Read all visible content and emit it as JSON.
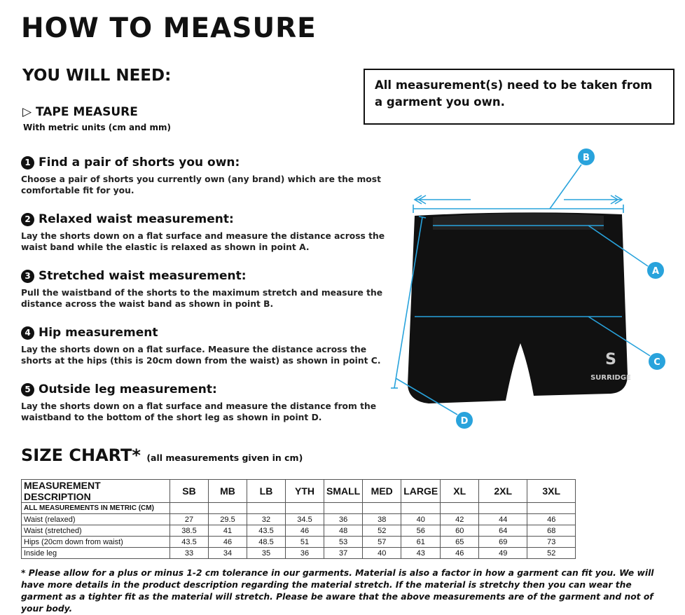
{
  "title": "HOW TO MEASURE",
  "you_will_need": "YOU WILL NEED:",
  "note": "All measurement(s) need to be taken from a garment you own.",
  "tape": {
    "icon": "play-triangle-icon",
    "label": "TAPE MEASURE",
    "sub": "With metric units (cm and mm)"
  },
  "steps": [
    {
      "num": "1",
      "title": "Find a pair of shorts you own:",
      "desc": "Choose a pair of shorts you currently own (any brand) which are the most comfortable fit for you."
    },
    {
      "num": "2",
      "title": "Relaxed waist measurement:",
      "desc": "Lay the shorts down on a flat surface and measure the distance across the waist band while the elastic is relaxed as shown in point A."
    },
    {
      "num": "3",
      "title": "Stretched waist measurement:",
      "desc": "Pull the waistband of the shorts to the maximum stretch and measure the distance across the waist band as shown in point B."
    },
    {
      "num": "4",
      "title": "Hip measurement",
      "desc": "Lay the shorts down on a flat surface. Measure the distance across the shorts at the hips (this is 20cm down from the waist)  as shown in point C."
    },
    {
      "num": "5",
      "title": "Outside leg measurement:",
      "desc": "Lay the shorts down on a flat surface and measure the distance from the waistband to the bottom of the short leg as shown in point D."
    }
  ],
  "diagram": {
    "labels": [
      "A",
      "B",
      "C",
      "D"
    ],
    "brand": "SURRIDGE",
    "accent": "#29a3dc"
  },
  "size_chart": {
    "title": "SIZE CHART*",
    "subtitle": "(all measurements given in cm)",
    "headers": [
      "MEASUREMENT DESCRIPTION",
      "SB",
      "MB",
      "LB",
      "YTH",
      "SMALL",
      "MED",
      "LARGE",
      "XL",
      "2XL",
      "3XL"
    ],
    "subheader": "ALL MEASUREMENTS IN METRIC (CM)",
    "rows": [
      {
        "label": "Waist (relaxed)",
        "values": [
          "27",
          "29.5",
          "32",
          "34.5",
          "36",
          "38",
          "40",
          "42",
          "44",
          "46"
        ]
      },
      {
        "label": "Waist (stretched)",
        "values": [
          "38.5",
          "41",
          "43.5",
          "46",
          "48",
          "52",
          "56",
          "60",
          "64",
          "68"
        ]
      },
      {
        "label": "Hips (20cm down from waist)",
        "values": [
          "43.5",
          "46",
          "48.5",
          "51",
          "53",
          "57",
          "61",
          "65",
          "69",
          "73"
        ]
      },
      {
        "label": "Inside leg",
        "values": [
          "33",
          "34",
          "35",
          "36",
          "37",
          "40",
          "43",
          "46",
          "49",
          "52"
        ]
      }
    ]
  },
  "footnote": "* Please allow for a plus or minus 1-2 cm tolerance in our garments. Material is also a factor in how a garment can fit you. We will have more details in the product description regarding the material stretch.  If the material is stretchy then you can wear the garment as a tighter fit as the material will stretch.  Please be aware that the above measurements are of the garment and not of your body."
}
